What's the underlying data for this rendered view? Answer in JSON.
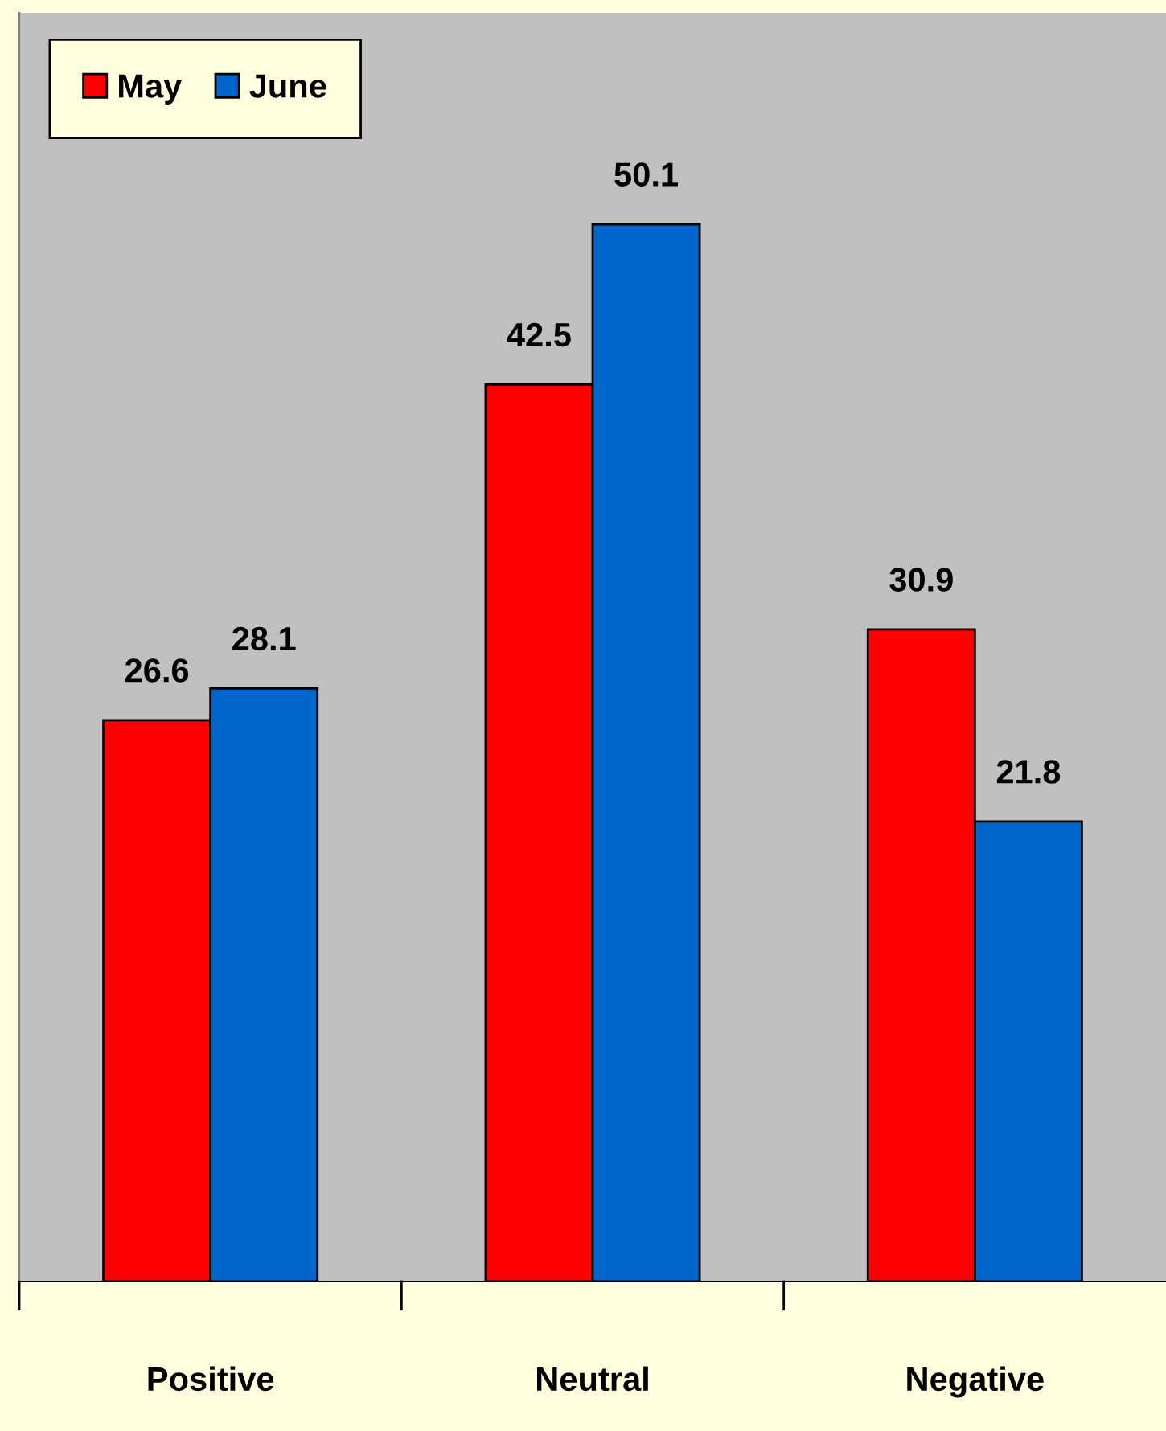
{
  "chart_data": {
    "type": "bar",
    "categories": [
      "Positive",
      "Neutral",
      "Negative"
    ],
    "series": [
      {
        "name": "May",
        "color": "#ff0000",
        "values": [
          26.6,
          42.5,
          30.9
        ]
      },
      {
        "name": "June",
        "color": "#0066cc",
        "values": [
          28.1,
          50.1,
          21.8
        ]
      }
    ],
    "data_labels": true,
    "legend": "top left",
    "grid": false,
    "tick_labels": "x"
  }
}
